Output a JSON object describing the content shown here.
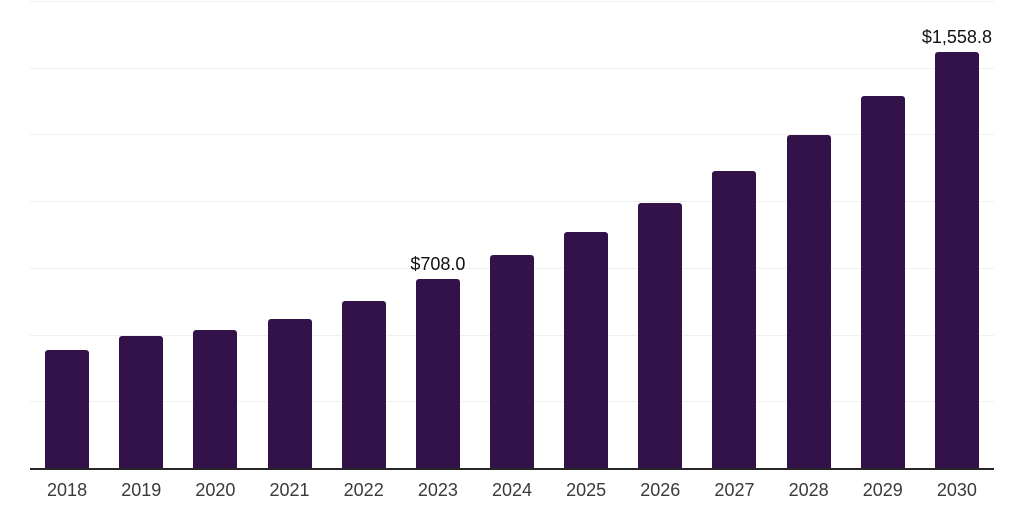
{
  "chart": {
    "background_color": "#ffffff",
    "bar_color": "#331149",
    "grid_color": "#f0f0f0",
    "axis_color": "#262626",
    "tick_label_color": "#3a3a3a",
    "data_label_color": "#111111"
  },
  "chart_data": {
    "type": "bar",
    "title": "",
    "xlabel": "",
    "ylabel": "",
    "categories": [
      "2018",
      "2019",
      "2020",
      "2021",
      "2022",
      "2023",
      "2024",
      "2025",
      "2026",
      "2027",
      "2028",
      "2029",
      "2030"
    ],
    "values": [
      443,
      495,
      517,
      558,
      625,
      708.0,
      799,
      886,
      993,
      1114,
      1247,
      1393,
      1558.8
    ],
    "value_labels": [
      "",
      "",
      "",
      "",
      "",
      "$708.0",
      "",
      "",
      "",
      "",
      "",
      "",
      "$1,558.8"
    ],
    "ylim": [
      0,
      1750
    ],
    "grid_step": 250,
    "grid": true,
    "legend": false,
    "y_tick_labels_visible": false
  }
}
